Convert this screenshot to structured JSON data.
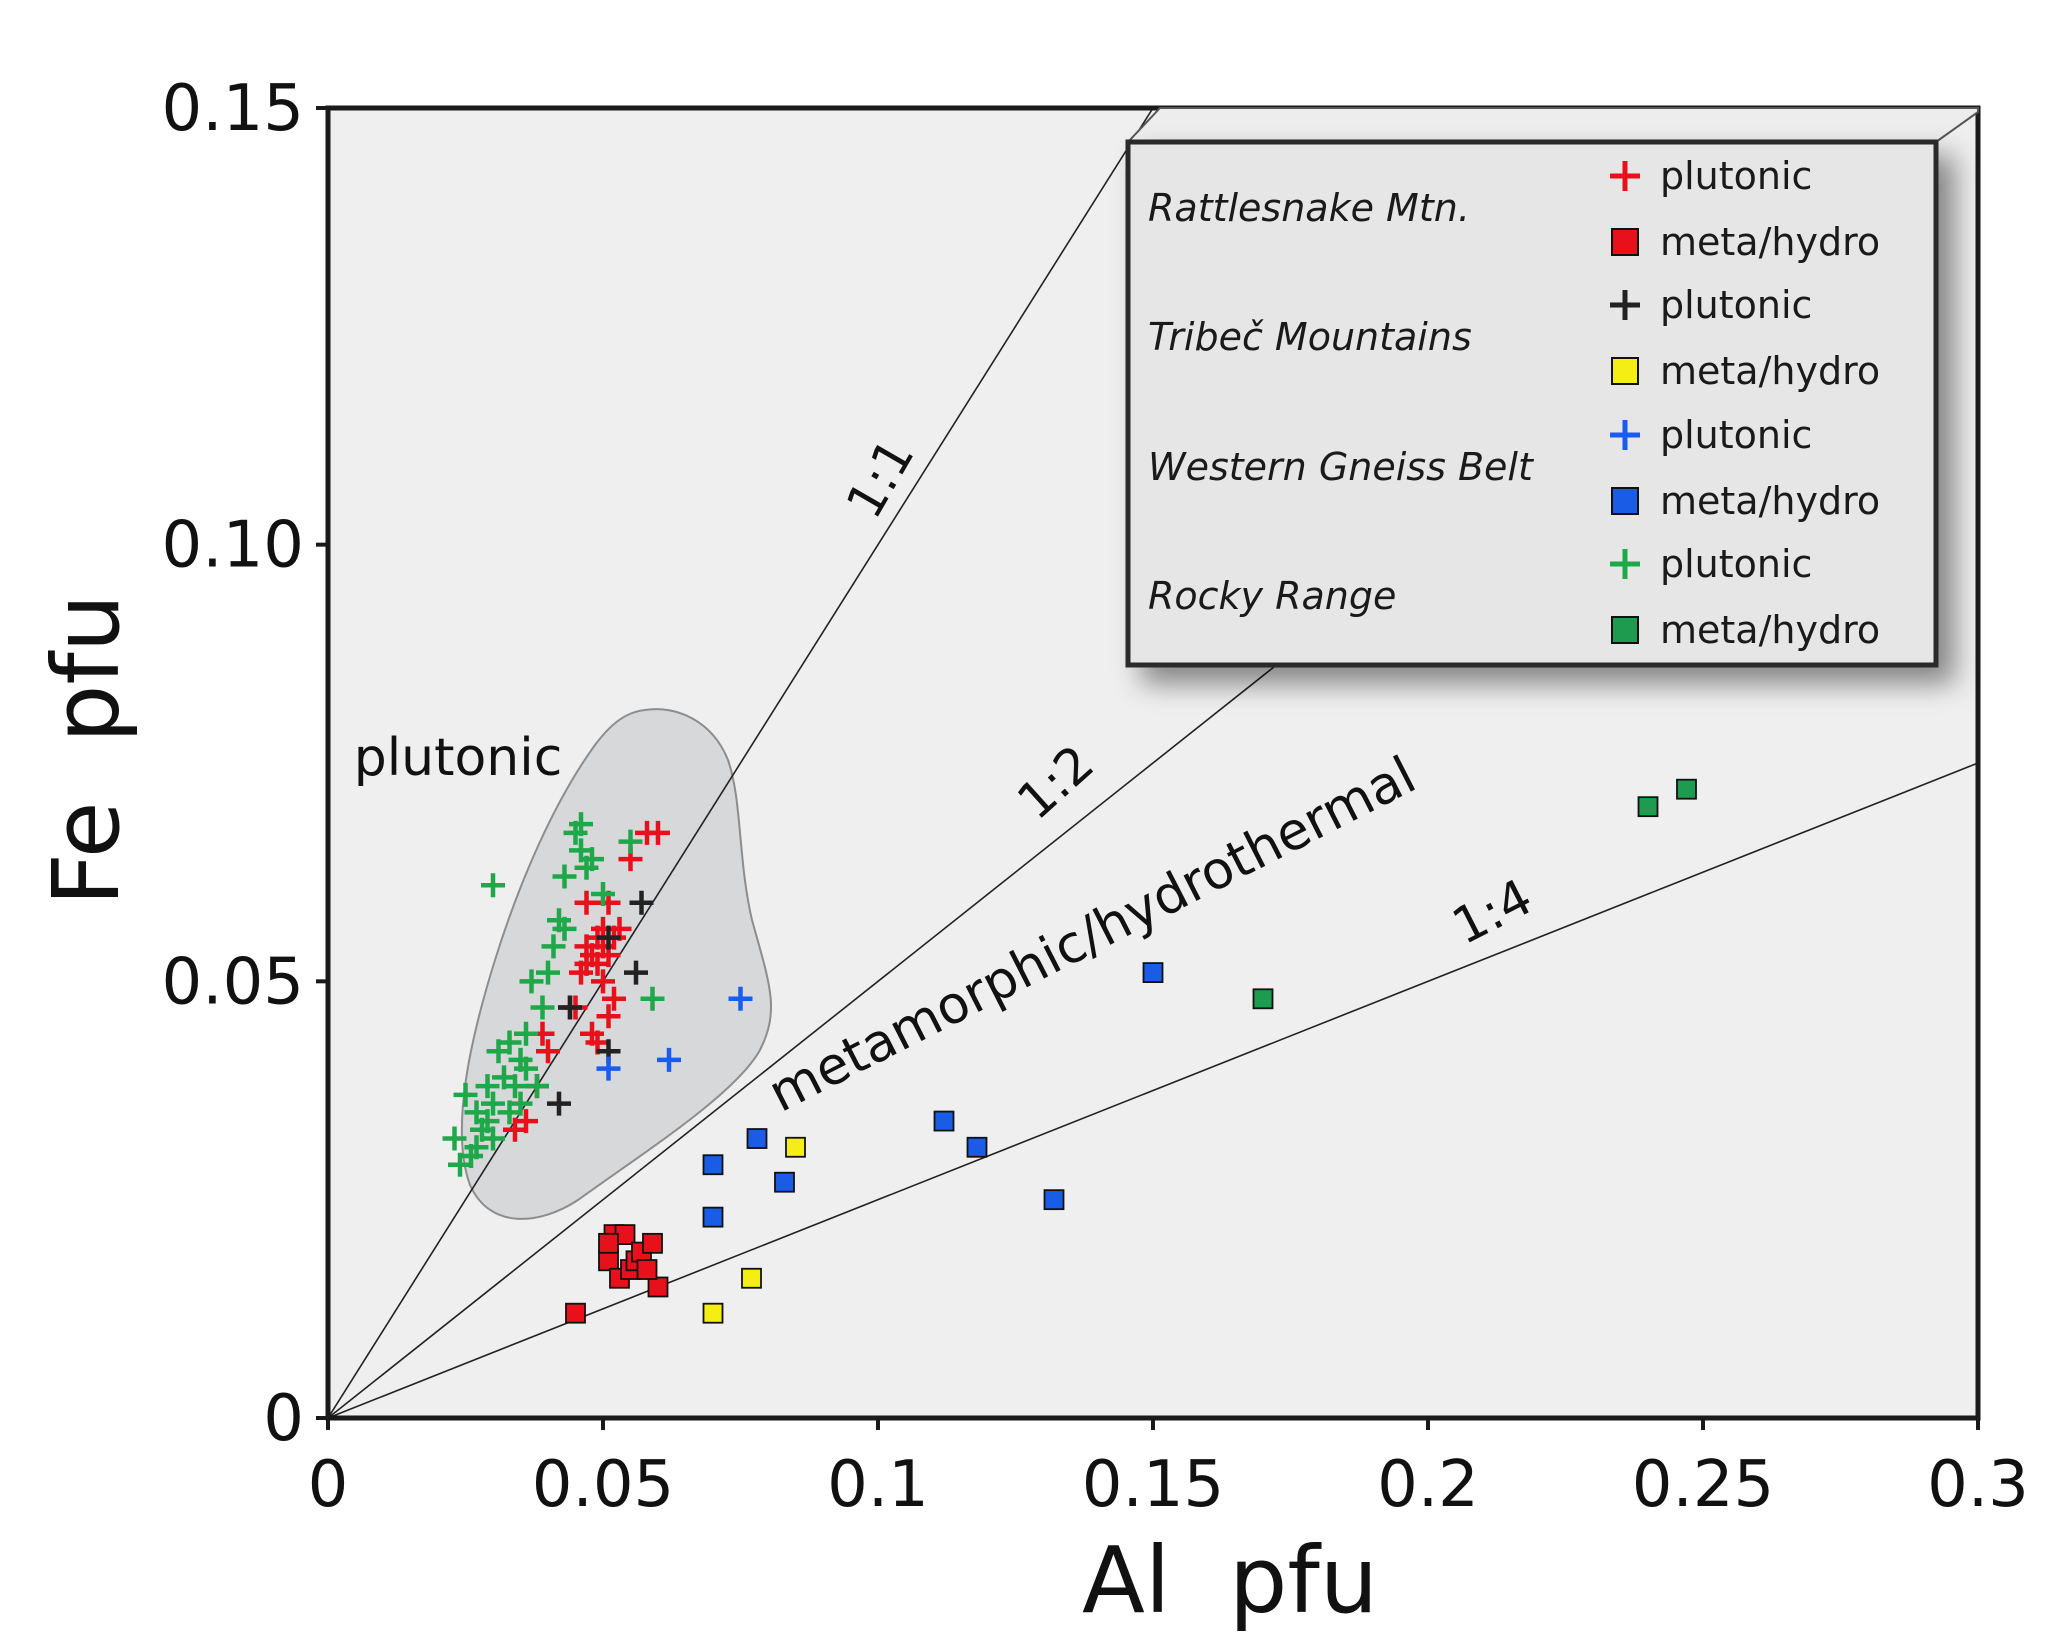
{
  "chart_data": {
    "type": "scatter",
    "title": "",
    "xlabel": "Al  pfu",
    "ylabel": "Fe  pfu",
    "xlim": [
      0,
      0.3
    ],
    "ylim": [
      0,
      0.15
    ],
    "xticks": [
      0,
      0.05,
      0.1,
      0.15,
      0.2,
      0.25,
      0.3
    ],
    "yticks": [
      0,
      0.05,
      0.1,
      0.15
    ],
    "xtick_labels": [
      "0",
      "0.05",
      "0.1",
      "0.15",
      "0.2",
      "0.25",
      "0.3"
    ],
    "ytick_labels": [
      "0",
      "0.05",
      "0.10",
      "0.15"
    ],
    "grid": false,
    "legend_position": "top-right",
    "reference_lines": [
      {
        "label": "1:1",
        "slope": 1.0
      },
      {
        "label": "1:2",
        "slope": 0.5
      },
      {
        "label": "1:4",
        "slope": 0.25
      }
    ],
    "regions": [
      {
        "label": "plutonic",
        "shape": "shaded-field"
      },
      {
        "label": "metamorphic/hydrothermal",
        "shape": "text-only"
      }
    ],
    "series": [
      {
        "name": "Rattlesnake Mtn. plutonic",
        "location": "Rattlesnake Mtn.",
        "kind": "plutonic",
        "marker": "plus",
        "color": "#e8101a",
        "points": [
          [
            0.034,
            0.033
          ],
          [
            0.036,
            0.034
          ],
          [
            0.038,
            0.038
          ],
          [
            0.04,
            0.042
          ],
          [
            0.039,
            0.044
          ],
          [
            0.044,
            0.047
          ],
          [
            0.045,
            0.047
          ],
          [
            0.048,
            0.044
          ],
          [
            0.049,
            0.043
          ],
          [
            0.051,
            0.046
          ],
          [
            0.052,
            0.048
          ],
          [
            0.046,
            0.051
          ],
          [
            0.047,
            0.052
          ],
          [
            0.048,
            0.053
          ],
          [
            0.049,
            0.052
          ],
          [
            0.05,
            0.054
          ],
          [
            0.051,
            0.053
          ],
          [
            0.052,
            0.055
          ],
          [
            0.053,
            0.056
          ],
          [
            0.05,
            0.056
          ],
          [
            0.049,
            0.055
          ],
          [
            0.047,
            0.059
          ],
          [
            0.051,
            0.059
          ],
          [
            0.055,
            0.064
          ],
          [
            0.058,
            0.067
          ],
          [
            0.06,
            0.067
          ],
          [
            0.047,
            0.054
          ],
          [
            0.05,
            0.05
          ]
        ]
      },
      {
        "name": "Rattlesnake Mtn. meta/hydro",
        "location": "Rattlesnake Mtn.",
        "kind": "meta/hydro",
        "marker": "square",
        "color": "#e8101a",
        "points": [
          [
            0.045,
            0.012
          ],
          [
            0.051,
            0.018
          ],
          [
            0.052,
            0.021
          ],
          [
            0.053,
            0.016
          ],
          [
            0.054,
            0.021
          ],
          [
            0.055,
            0.017
          ],
          [
            0.056,
            0.018
          ],
          [
            0.057,
            0.019
          ],
          [
            0.059,
            0.02
          ],
          [
            0.06,
            0.015
          ],
          [
            0.051,
            0.02
          ],
          [
            0.058,
            0.017
          ]
        ]
      },
      {
        "name": "Tribeč Mountains plutonic",
        "location": "Tribeč Mountains",
        "kind": "plutonic",
        "marker": "plus",
        "color": "#222222",
        "points": [
          [
            0.042,
            0.036
          ],
          [
            0.044,
            0.047
          ],
          [
            0.051,
            0.042
          ],
          [
            0.051,
            0.055
          ],
          [
            0.056,
            0.051
          ],
          [
            0.057,
            0.059
          ]
        ]
      },
      {
        "name": "Tribeč Mountains meta/hydro",
        "location": "Tribeč Mountains",
        "kind": "meta/hydro",
        "marker": "square",
        "color": "#f5ee15",
        "points": [
          [
            0.07,
            0.012
          ],
          [
            0.077,
            0.016
          ],
          [
            0.085,
            0.031
          ]
        ]
      },
      {
        "name": "Western Gneiss Belt plutonic",
        "location": "Western Gneiss Belt",
        "kind": "plutonic",
        "marker": "plus",
        "color": "#1a5cf0",
        "points": [
          [
            0.051,
            0.04
          ],
          [
            0.062,
            0.041
          ],
          [
            0.075,
            0.048
          ]
        ]
      },
      {
        "name": "Western Gneiss Belt meta/hydro",
        "location": "Western Gneiss Belt",
        "kind": "meta/hydro",
        "marker": "square",
        "color": "#1a5ce6",
        "points": [
          [
            0.07,
            0.023
          ],
          [
            0.07,
            0.029
          ],
          [
            0.078,
            0.032
          ],
          [
            0.083,
            0.027
          ],
          [
            0.112,
            0.034
          ],
          [
            0.118,
            0.031
          ],
          [
            0.132,
            0.025
          ],
          [
            0.15,
            0.051
          ]
        ]
      },
      {
        "name": "Rocky Range plutonic",
        "location": "Rocky Range",
        "kind": "plutonic",
        "marker": "plus",
        "color": "#1fa84a",
        "points": [
          [
            0.023,
            0.032
          ],
          [
            0.024,
            0.029
          ],
          [
            0.025,
            0.037
          ],
          [
            0.026,
            0.03
          ],
          [
            0.027,
            0.031
          ],
          [
            0.027,
            0.035
          ],
          [
            0.028,
            0.033
          ],
          [
            0.029,
            0.034
          ],
          [
            0.029,
            0.038
          ],
          [
            0.03,
            0.032
          ],
          [
            0.03,
            0.036
          ],
          [
            0.031,
            0.042
          ],
          [
            0.032,
            0.039
          ],
          [
            0.033,
            0.043
          ],
          [
            0.033,
            0.035
          ],
          [
            0.034,
            0.038
          ],
          [
            0.035,
            0.041
          ],
          [
            0.036,
            0.04
          ],
          [
            0.036,
            0.044
          ],
          [
            0.037,
            0.05
          ],
          [
            0.038,
            0.038
          ],
          [
            0.039,
            0.047
          ],
          [
            0.04,
            0.051
          ],
          [
            0.041,
            0.054
          ],
          [
            0.042,
            0.057
          ],
          [
            0.043,
            0.056
          ],
          [
            0.043,
            0.062
          ],
          [
            0.045,
            0.067
          ],
          [
            0.046,
            0.065
          ],
          [
            0.046,
            0.068
          ],
          [
            0.047,
            0.063
          ],
          [
            0.048,
            0.064
          ],
          [
            0.05,
            0.06
          ],
          [
            0.055,
            0.066
          ],
          [
            0.059,
            0.048
          ],
          [
            0.03,
            0.061
          ],
          [
            0.035,
            0.036
          ]
        ]
      },
      {
        "name": "Rocky Range meta/hydro",
        "location": "Rocky Range",
        "kind": "meta/hydro",
        "marker": "square",
        "color": "#1e9b4f",
        "points": [
          [
            0.17,
            0.048
          ],
          [
            0.24,
            0.07
          ],
          [
            0.247,
            0.072
          ]
        ]
      }
    ],
    "legend": {
      "groups": [
        {
          "location": "Rattlesnake Mtn.",
          "entries": [
            {
              "marker": "plus",
              "color": "#e8101a",
              "label": "plutonic"
            },
            {
              "marker": "square",
              "color": "#e8101a",
              "label": "meta/hydro"
            }
          ]
        },
        {
          "location": "Tribeč Mountains",
          "entries": [
            {
              "marker": "plus",
              "color": "#222222",
              "label": "plutonic"
            },
            {
              "marker": "square",
              "color": "#f5ee15",
              "label": "meta/hydro"
            }
          ]
        },
        {
          "location": "Western Gneiss Belt",
          "entries": [
            {
              "marker": "plus",
              "color": "#1a5cf0",
              "label": "plutonic"
            },
            {
              "marker": "square",
              "color": "#1a5ce6",
              "label": "meta/hydro"
            }
          ]
        },
        {
          "location": "Rocky Range",
          "entries": [
            {
              "marker": "plus",
              "color": "#1fa84a",
              "label": "plutonic"
            },
            {
              "marker": "square",
              "color": "#1e9b4f",
              "label": "meta/hydro"
            }
          ]
        }
      ]
    }
  }
}
